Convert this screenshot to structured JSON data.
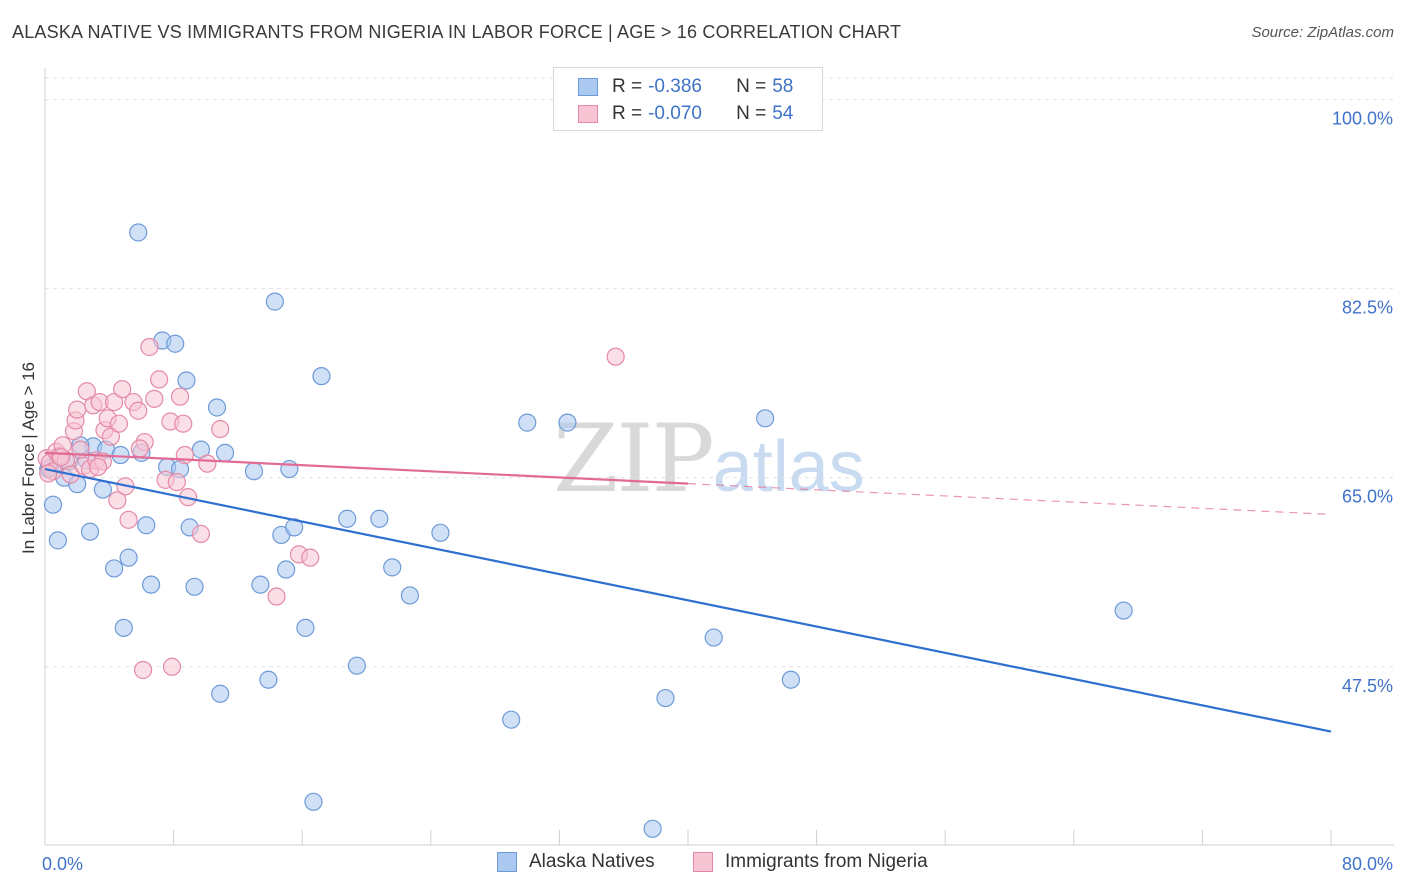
{
  "header": {
    "title": "ALASKA NATIVE VS IMMIGRANTS FROM NIGERIA IN LABOR FORCE | AGE > 16 CORRELATION CHART",
    "source": "Source: ZipAtlas.com"
  },
  "watermark": {
    "zip": "ZIP",
    "atlas": "atlas"
  },
  "legend": {
    "rows": [
      {
        "r_label": "R =",
        "r_value": "-0.386",
        "n_label": "N =",
        "n_value": "58",
        "color": "#aac8f0",
        "stroke": "#6f9ad8"
      },
      {
        "r_label": "R =",
        "r_value": "-0.070",
        "n_label": "N =",
        "n_value": "54",
        "color": "#f7c4d4",
        "stroke": "#e48aa8"
      }
    ]
  },
  "bottom_legend": {
    "items": [
      {
        "label": "Alaska Natives",
        "color": "#aac8f0",
        "stroke": "#6f9ad8"
      },
      {
        "label": "Immigrants from Nigeria",
        "color": "#f7c4d4",
        "stroke": "#e48aa8"
      }
    ]
  },
  "chart_data": {
    "type": "scatter",
    "title": "ALASKA NATIVE VS IMMIGRANTS FROM NIGERIA IN LABOR FORCE | AGE > 16 CORRELATION CHART",
    "xlabel": "",
    "ylabel": "In Labor Force | Age > 16",
    "xlim": [
      0,
      80
    ],
    "ylim": [
      31,
      102
    ],
    "x_tick_labels": [
      {
        "value": 0,
        "label": "0.0%"
      },
      {
        "value": 80,
        "label": "80.0%"
      }
    ],
    "y_tick_labels": [
      {
        "value": 47.5,
        "label": "47.5%"
      },
      {
        "value": 65.0,
        "label": "65.0%"
      },
      {
        "value": 82.5,
        "label": "82.5%"
      },
      {
        "value": 100.0,
        "label": "100.0%"
      }
    ],
    "grid": true,
    "series": [
      {
        "name": "Alaska Natives",
        "color": "#aac8f0",
        "stroke": "#6f9ad8",
        "trend_color": "#2f6fd0",
        "trend": {
          "x0": 0,
          "y0": 65.8,
          "x1": 80,
          "y1": 41.5,
          "dashed_from": null
        },
        "points": [
          [
            0.2,
            65.8
          ],
          [
            0.5,
            62.5
          ],
          [
            0.8,
            59.2
          ],
          [
            1.2,
            65.0
          ],
          [
            1.5,
            66.5
          ],
          [
            2.0,
            64.4
          ],
          [
            2.6,
            66.6
          ],
          [
            2.8,
            60.0
          ],
          [
            3.0,
            67.9
          ],
          [
            3.6,
            63.9
          ],
          [
            3.8,
            67.6
          ],
          [
            4.3,
            56.6
          ],
          [
            4.7,
            67.1
          ],
          [
            4.9,
            51.1
          ],
          [
            5.2,
            57.6
          ],
          [
            5.8,
            87.7
          ],
          [
            6.0,
            67.3
          ],
          [
            6.3,
            60.6
          ],
          [
            6.6,
            55.1
          ],
          [
            7.3,
            77.7
          ],
          [
            7.6,
            66.0
          ],
          [
            8.1,
            77.4
          ],
          [
            8.4,
            65.8
          ],
          [
            8.8,
            74.0
          ],
          [
            9.0,
            60.4
          ],
          [
            9.3,
            54.9
          ],
          [
            9.7,
            67.6
          ],
          [
            10.7,
            71.5
          ],
          [
            10.9,
            45.0
          ],
          [
            11.2,
            67.3
          ],
          [
            13.0,
            65.6
          ],
          [
            13.4,
            55.1
          ],
          [
            13.9,
            46.3
          ],
          [
            14.3,
            81.3
          ],
          [
            14.7,
            59.7
          ],
          [
            15.0,
            56.5
          ],
          [
            15.2,
            65.8
          ],
          [
            15.5,
            60.4
          ],
          [
            16.2,
            51.1
          ],
          [
            16.7,
            35.0
          ],
          [
            17.2,
            74.4
          ],
          [
            18.8,
            61.2
          ],
          [
            19.4,
            47.6
          ],
          [
            20.8,
            61.2
          ],
          [
            21.6,
            56.7
          ],
          [
            22.7,
            54.1
          ],
          [
            24.6,
            59.9
          ],
          [
            29.0,
            42.6
          ],
          [
            30.0,
            70.1
          ],
          [
            32.5,
            70.1
          ],
          [
            37.8,
            32.5
          ],
          [
            38.6,
            44.6
          ],
          [
            41.6,
            50.2
          ],
          [
            44.8,
            70.5
          ],
          [
            46.4,
            46.3
          ],
          [
            67.1,
            52.7
          ],
          [
            0.3,
            65.9
          ],
          [
            2.2,
            68.0
          ]
        ]
      },
      {
        "name": "Immigrants from Nigeria",
        "color": "#f7c4d4",
        "stroke": "#e48aa8",
        "trend_color": "#e26b96",
        "trend": {
          "x0": 0,
          "y0": 67.3,
          "x1": 80,
          "y1": 61.6,
          "dashed_from": 40
        },
        "points": [
          [
            0.1,
            66.8
          ],
          [
            0.3,
            66.4
          ],
          [
            0.5,
            65.6
          ],
          [
            0.7,
            67.4
          ],
          [
            0.9,
            67.0
          ],
          [
            1.1,
            68.0
          ],
          [
            1.3,
            66.6
          ],
          [
            1.6,
            65.3
          ],
          [
            1.8,
            69.3
          ],
          [
            1.9,
            70.3
          ],
          [
            2.0,
            71.3
          ],
          [
            2.2,
            67.6
          ],
          [
            2.4,
            66.1
          ],
          [
            2.6,
            73.0
          ],
          [
            2.8,
            65.8
          ],
          [
            3.0,
            71.7
          ],
          [
            3.2,
            66.6
          ],
          [
            3.4,
            72.0
          ],
          [
            3.6,
            66.5
          ],
          [
            3.7,
            69.4
          ],
          [
            3.9,
            70.5
          ],
          [
            4.1,
            68.8
          ],
          [
            4.3,
            72.0
          ],
          [
            4.5,
            62.9
          ],
          [
            4.6,
            70.0
          ],
          [
            4.8,
            73.2
          ],
          [
            5.0,
            64.2
          ],
          [
            5.2,
            61.1
          ],
          [
            5.5,
            72.0
          ],
          [
            5.8,
            71.2
          ],
          [
            6.1,
            47.2
          ],
          [
            6.2,
            68.3
          ],
          [
            6.5,
            77.1
          ],
          [
            6.8,
            72.3
          ],
          [
            7.1,
            74.1
          ],
          [
            7.5,
            64.8
          ],
          [
            7.8,
            70.2
          ],
          [
            7.9,
            47.5
          ],
          [
            8.2,
            64.6
          ],
          [
            8.4,
            72.5
          ],
          [
            8.6,
            70.0
          ],
          [
            8.7,
            67.1
          ],
          [
            8.9,
            63.2
          ],
          [
            9.7,
            59.8
          ],
          [
            10.1,
            66.3
          ],
          [
            10.9,
            69.5
          ],
          [
            14.4,
            54.0
          ],
          [
            15.8,
            57.9
          ],
          [
            16.5,
            57.6
          ],
          [
            35.5,
            76.2
          ],
          [
            0.2,
            65.4
          ],
          [
            1.0,
            66.9
          ],
          [
            3.3,
            66.0
          ],
          [
            5.9,
            67.7
          ]
        ]
      }
    ]
  }
}
